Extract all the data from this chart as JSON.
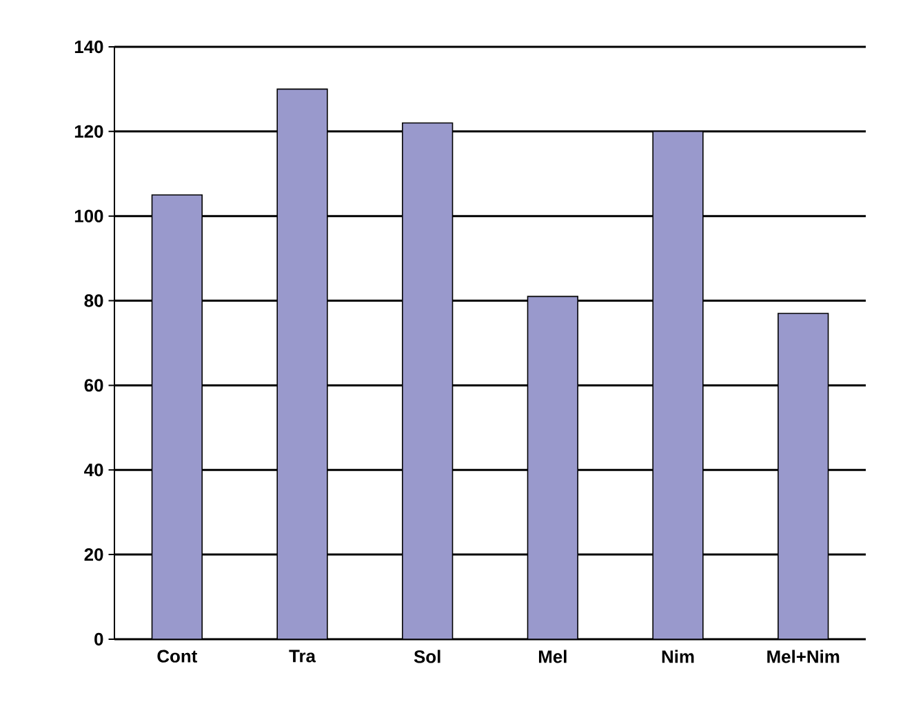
{
  "chart_data": {
    "type": "bar",
    "categories": [
      "Cont",
      "Tra",
      "Sol",
      "Mel",
      "Nim",
      "Mel+Nim"
    ],
    "values": [
      105,
      130,
      122,
      81,
      120,
      77
    ],
    "color": "#9999cc",
    "ylim": [
      0,
      140
    ],
    "yticks": [
      0,
      20,
      40,
      60,
      80,
      100,
      120,
      140
    ],
    "grid": "y"
  }
}
